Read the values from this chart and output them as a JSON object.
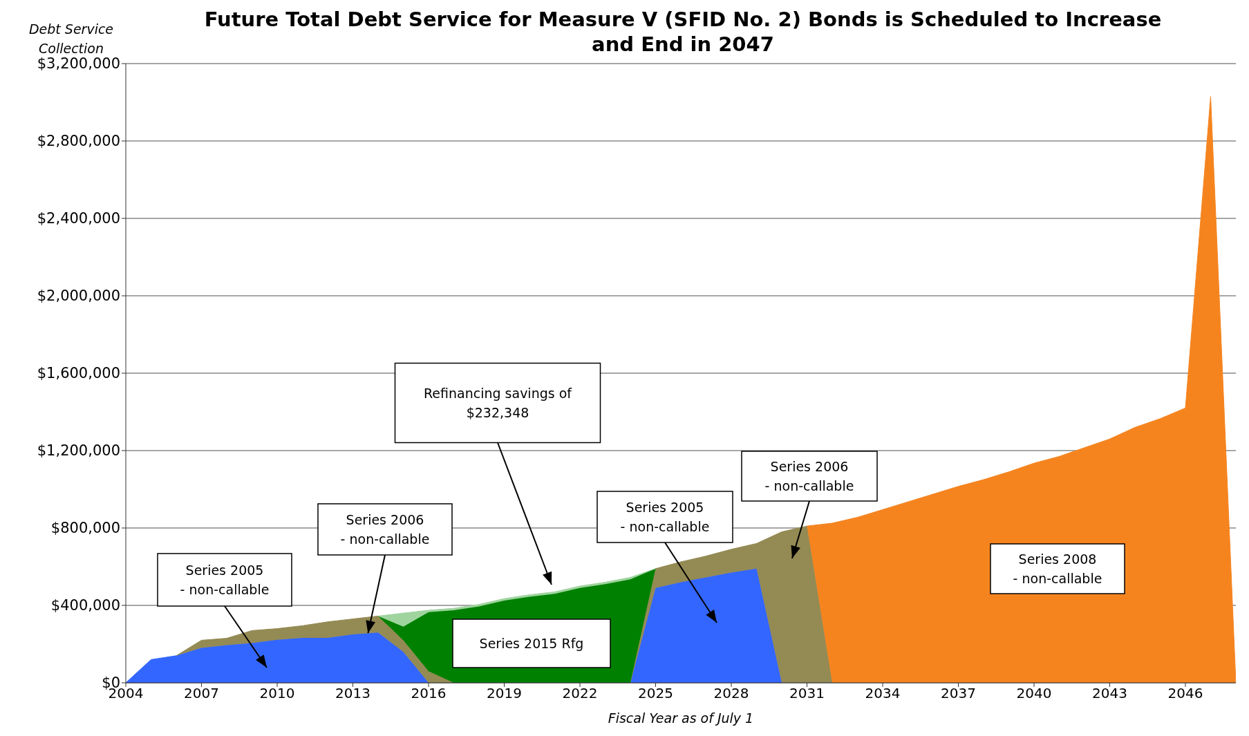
{
  "chart_data": {
    "type": "area",
    "title": "Future Total Debt Service for Measure V (SFID No. 2) Bonds is Scheduled to Increase and End in 2047",
    "xlabel": "Fiscal Year as of July 1",
    "ylabel": "Debt Service Collection",
    "x": [
      2004,
      2005,
      2006,
      2007,
      2008,
      2009,
      2010,
      2011,
      2012,
      2013,
      2014,
      2015,
      2016,
      2017,
      2018,
      2019,
      2020,
      2021,
      2022,
      2023,
      2024,
      2025,
      2026,
      2027,
      2028,
      2029,
      2030,
      2031,
      2032,
      2033,
      2034,
      2035,
      2036,
      2037,
      2038,
      2039,
      2040,
      2041,
      2042,
      2043,
      2044,
      2045,
      2046,
      2047,
      2048
    ],
    "stacked": true,
    "series": [
      {
        "color": "#3366ff",
        "values": [
          0,
          120000,
          140000,
          180000,
          195000,
          205000,
          222000,
          232000,
          232000,
          250000,
          260000,
          160000,
          0,
          null,
          null,
          null,
          null,
          null,
          null,
          null,
          0,
          490000,
          520000,
          545000,
          570000,
          590000,
          0,
          null,
          null,
          null,
          null,
          null,
          null,
          null,
          null,
          null,
          null,
          null,
          null,
          null,
          null,
          null,
          null,
          null,
          null
        ]
      },
      {
        "color": "#948a54",
        "values": [
          null,
          null,
          0,
          40000,
          35000,
          65000,
          58000,
          63000,
          83000,
          80000,
          85000,
          60000,
          60000,
          0,
          null,
          null,
          null,
          null,
          null,
          null,
          0,
          100000,
          105000,
          110000,
          120000,
          130000,
          780000,
          810000,
          0,
          null,
          null,
          null,
          null,
          null,
          null,
          null,
          null,
          null,
          null,
          null,
          null,
          null,
          null,
          null,
          null
        ]
      },
      {
        "color": "#008000",
        "values": [
          null,
          null,
          null,
          null,
          null,
          null,
          null,
          null,
          null,
          null,
          0,
          70000,
          305000,
          375000,
          395000,
          425000,
          445000,
          460000,
          490000,
          510000,
          535000,
          0,
          null,
          null,
          null,
          null,
          null,
          null,
          null,
          null,
          null,
          null,
          null,
          null,
          null,
          null,
          null,
          null,
          null,
          null,
          null,
          null,
          null,
          null,
          null
        ]
      },
      {
        "color": "#9fd49f",
        "values": [
          null,
          null,
          null,
          null,
          null,
          null,
          null,
          null,
          null,
          null,
          0,
          70000,
          10000,
          10000,
          10000,
          10000,
          10000,
          10000,
          10000,
          10000,
          10000,
          0,
          null,
          null,
          null,
          null,
          null,
          null,
          null,
          null,
          null,
          null,
          null,
          null,
          null,
          null,
          null,
          null,
          null,
          null,
          null,
          null,
          null,
          null,
          null
        ]
      },
      {
        "color": "#f5841f",
        "values": [
          null,
          null,
          null,
          null,
          null,
          null,
          null,
          null,
          null,
          null,
          null,
          null,
          null,
          null,
          null,
          null,
          null,
          null,
          null,
          null,
          null,
          null,
          null,
          null,
          null,
          null,
          null,
          0,
          825000,
          855000,
          895000,
          935000,
          975000,
          1015000,
          1050000,
          1090000,
          1135000,
          1170000,
          1215000,
          1260000,
          1320000,
          1365000,
          1420000,
          3030000,
          0
        ]
      }
    ],
    "xlim": [
      2004,
      2048
    ],
    "xticks": [
      2004,
      2007,
      2010,
      2013,
      2016,
      2019,
      2022,
      2025,
      2028,
      2031,
      2034,
      2037,
      2040,
      2043,
      2046
    ],
    "ylim": [
      0,
      3200000
    ],
    "yticks": [
      {
        "value": 0,
        "label": "$0"
      },
      {
        "value": 400000,
        "label": "$400,000"
      },
      {
        "value": 800000,
        "label": "$800,000"
      },
      {
        "value": 1200000,
        "label": "$1,200,000"
      },
      {
        "value": 1600000,
        "label": "$1,600,000"
      },
      {
        "value": 2000000,
        "label": "$2,000,000"
      },
      {
        "value": 2400000,
        "label": "$2,400,000"
      },
      {
        "value": 2800000,
        "label": "$2,800,000"
      },
      {
        "value": 3200000,
        "label": "$3,200,000"
      }
    ],
    "grid": "y",
    "annotations": [
      "Series 2005\n- non-callable",
      {
        "text": "Series 2006\n- non-callable",
        "x": 2013.6,
        "y": 256000
      },
      "Refinancing savings of\n$232,348",
      "Series 2015 Rfg",
      "Series 2005\n- non-callable",
      "Series 2006\n- non-callable",
      "Series 2008\n- non-callable"
    ]
  }
}
